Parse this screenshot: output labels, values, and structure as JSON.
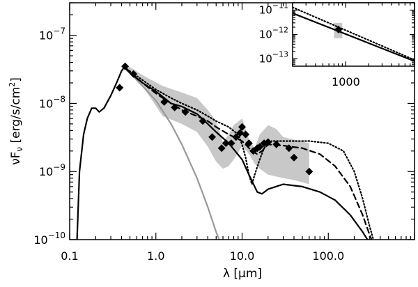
{
  "chart_data": {
    "type": "line",
    "xlabel": "λ [μm]",
    "ylabel": "νF",
    "ylabel_sub": "ν",
    "ylabel_units": " [erg/s/cm",
    "ylabel_exp": "2",
    "ylabel_close": "]",
    "x_scale": "log",
    "y_scale": "log",
    "xlim": [
      0.1,
      1000
    ],
    "ylim": [
      1e-10,
      3e-07
    ],
    "x_ticklabels": [
      {
        "v": 0.1,
        "t": "0.1"
      },
      {
        "v": 1,
        "t": "1.0"
      },
      {
        "v": 10,
        "t": "10.0"
      },
      {
        "v": 100,
        "t": "100.0"
      }
    ],
    "y_ticklabels": [
      {
        "v": 1e-10,
        "base": "10",
        "exp": "−10"
      },
      {
        "v": 1e-09,
        "base": "10",
        "exp": "−9"
      },
      {
        "v": 1e-08,
        "base": "10",
        "exp": "−8"
      },
      {
        "v": 1e-07,
        "base": "10",
        "exp": "−7"
      }
    ],
    "uncertainty_band": {
      "color": "#c8c8c8",
      "upper": [
        [
          0.44,
          3.8e-08
        ],
        [
          0.7,
          2.6e-08
        ],
        [
          1.2,
          1.8e-08
        ],
        [
          2.0,
          1.45e-08
        ],
        [
          3.0,
          1.2e-08
        ],
        [
          4.0,
          8e-09
        ],
        [
          5.0,
          5.5e-09
        ],
        [
          6.0,
          2.7e-09
        ],
        [
          7.0,
          3.5e-09
        ],
        [
          8.0,
          4.8e-09
        ],
        [
          10.0,
          6e-09
        ],
        [
          12.0,
          3e-09
        ],
        [
          14.0,
          2.2e-09
        ],
        [
          16.0,
          3.5e-09
        ],
        [
          20.0,
          4.8e-09
        ],
        [
          25.0,
          4.2e-09
        ],
        [
          30.0,
          3.2e-09
        ],
        [
          60.0,
          2.6e-09
        ]
      ],
      "lower": [
        [
          60.0,
          6.5e-10
        ],
        [
          40.0,
          7.5e-10
        ],
        [
          30.0,
          8e-10
        ],
        [
          20.0,
          9e-10
        ],
        [
          16.0,
          1.1e-09
        ],
        [
          14.0,
          1.3e-09
        ],
        [
          12.0,
          1.8e-09
        ],
        [
          10.0,
          2.4e-09
        ],
        [
          9.0,
          1.9e-09
        ],
        [
          8.0,
          1.5e-09
        ],
        [
          7.0,
          1.2e-09
        ],
        [
          6.0,
          1.1e-09
        ],
        [
          5.0,
          1.4e-09
        ],
        [
          4.0,
          2.3e-09
        ],
        [
          3.0,
          3.8e-09
        ],
        [
          2.0,
          5e-09
        ],
        [
          1.2,
          6.5e-09
        ],
        [
          0.7,
          1.8e-08
        ],
        [
          0.44,
          3.2e-08
        ]
      ]
    },
    "series": [
      {
        "style": "solid",
        "color": "#999999",
        "points": [
          [
            0.42,
            3.4e-08
          ],
          [
            0.5,
            2.8e-08
          ],
          [
            0.7,
            1.8e-08
          ],
          [
            1.0,
            1.1e-08
          ],
          [
            1.5,
            5e-09
          ],
          [
            2.0,
            2.5e-09
          ],
          [
            3.0,
            8e-10
          ],
          [
            4.0,
            3e-10
          ],
          [
            5.0,
            1.3e-10
          ],
          [
            5.8,
            8e-11
          ]
        ]
      },
      {
        "style": "solid",
        "color": "#000000",
        "points": [
          [
            0.12,
            6e-11
          ],
          [
            0.13,
            1e-09
          ],
          [
            0.145,
            3.5e-09
          ],
          [
            0.16,
            6e-09
          ],
          [
            0.18,
            8.5e-09
          ],
          [
            0.2,
            8.5e-09
          ],
          [
            0.22,
            7.5e-09
          ],
          [
            0.25,
            8.5e-09
          ],
          [
            0.3,
            1.3e-08
          ],
          [
            0.35,
            2e-08
          ],
          [
            0.4,
            3e-08
          ],
          [
            0.43,
            3.4e-08
          ],
          [
            0.5,
            2.8e-08
          ],
          [
            0.7,
            2e-08
          ],
          [
            1.0,
            1.5e-08
          ],
          [
            1.5,
            1e-08
          ],
          [
            2.0,
            9e-09
          ],
          [
            3.0,
            7e-09
          ],
          [
            4.0,
            5e-09
          ],
          [
            5.0,
            3.8e-09
          ],
          [
            7.0,
            2.6e-09
          ],
          [
            10.0,
            1.5e-09
          ],
          [
            12.0,
            9e-10
          ],
          [
            15.0,
            5e-10
          ],
          [
            17.0,
            4.7e-10
          ],
          [
            20.0,
            5.5e-10
          ],
          [
            30.0,
            6.5e-10
          ],
          [
            50.0,
            6e-10
          ],
          [
            80.0,
            5e-10
          ],
          [
            120.0,
            3.8e-10
          ],
          [
            180.0,
            2.3e-10
          ],
          [
            250.0,
            1.3e-10
          ],
          [
            300.0,
            9e-11
          ]
        ]
      },
      {
        "style": "dashed",
        "color": "#000000",
        "points": [
          [
            0.43,
            3.4e-08
          ],
          [
            0.7,
            2e-08
          ],
          [
            1.0,
            1.4e-08
          ],
          [
            1.5,
            1e-08
          ],
          [
            2.0,
            8e-09
          ],
          [
            3.0,
            6.5e-09
          ],
          [
            4.0,
            5.5e-09
          ],
          [
            5.0,
            4.5e-09
          ],
          [
            7.0,
            3.5e-09
          ],
          [
            10.0,
            2.8e-09
          ],
          [
            13.0,
            2e-09
          ],
          [
            15.0,
            1.8e-09
          ],
          [
            17.0,
            2e-09
          ],
          [
            20.0,
            2.5e-09
          ],
          [
            30.0,
            2.4e-09
          ],
          [
            50.0,
            2.2e-09
          ],
          [
            80.0,
            1.8e-09
          ],
          [
            120.0,
            1.2e-09
          ],
          [
            180.0,
            6e-10
          ],
          [
            250.0,
            2.3e-10
          ],
          [
            300.0,
            1.2e-10
          ],
          [
            340.0,
            8e-11
          ]
        ]
      },
      {
        "style": "dotted",
        "color": "#000000",
        "points": [
          [
            0.43,
            3.4e-08
          ],
          [
            0.7,
            2.2e-08
          ],
          [
            1.0,
            1.6e-08
          ],
          [
            1.5,
            1.2e-08
          ],
          [
            2.0,
            1e-08
          ],
          [
            3.0,
            8e-09
          ],
          [
            4.0,
            6.5e-09
          ],
          [
            5.0,
            5.5e-09
          ],
          [
            7.0,
            4.5e-09
          ],
          [
            9.0,
            3.5e-09
          ],
          [
            10.0,
            2.5e-09
          ],
          [
            11.0,
            1.6e-09
          ],
          [
            12.0,
            9e-10
          ],
          [
            13.0,
            6.5e-10
          ],
          [
            14.0,
            9e-10
          ],
          [
            16.0,
            1.5e-09
          ],
          [
            18.0,
            2.2e-09
          ],
          [
            22.0,
            2.8e-09
          ],
          [
            30.0,
            2.8e-09
          ],
          [
            60.0,
            2.8e-09
          ],
          [
            100.0,
            2.6e-09
          ],
          [
            150.0,
            2e-09
          ],
          [
            200.0,
            1e-09
          ],
          [
            250.0,
            4e-10
          ],
          [
            300.0,
            1.6e-10
          ],
          [
            350.0,
            8e-11
          ]
        ]
      }
    ],
    "data_points": [
      [
        0.38,
        1.7e-08
      ],
      [
        0.44,
        3.5e-08
      ],
      [
        0.55,
        2.7e-08
      ],
      [
        1.25,
        1.05e-08
      ],
      [
        1.65,
        8.7e-09
      ],
      [
        2.2,
        7.5e-09
      ],
      [
        3.5,
        5.5e-09
      ],
      [
        4.5,
        3.2e-09
      ],
      [
        5.8,
        2.2e-09
      ],
      [
        6.5,
        2.6e-09
      ],
      [
        7.5,
        2.6e-09
      ],
      [
        8.5,
        3.2e-09
      ],
      [
        9.5,
        3.7e-09
      ],
      [
        10.0,
        4.5e-09
      ],
      [
        11.0,
        3.5e-09
      ],
      [
        12.0,
        2.6e-09
      ],
      [
        13.5,
        2e-09
      ],
      [
        15.0,
        2.2e-09
      ],
      [
        16.0,
        2.3e-09
      ],
      [
        18.0,
        2.6e-09
      ],
      [
        20.0,
        2.7e-09
      ],
      [
        25.0,
        2.5e-09
      ],
      [
        35.0,
        2.2e-09
      ],
      [
        40.0,
        1.6e-09
      ],
      [
        60.0,
        1e-09
      ]
    ],
    "inset": {
      "xlim": [
        200,
        8000
      ],
      "ylim": [
        5e-14,
        2e-11
      ],
      "x_ticklabels": [
        {
          "v": 1000,
          "t": "1000"
        }
      ],
      "y_ticklabels": [
        {
          "v": 1e-11,
          "base": "10",
          "exp": "−11"
        },
        {
          "v": 1e-12,
          "base": "10",
          "exp": "−12"
        },
        {
          "v": 1e-13,
          "base": "10",
          "exp": "−13"
        }
      ],
      "box": {
        "x": [
          700,
          900
        ],
        "y": [
          7e-13,
          3e-12
        ],
        "color": "#c8c8c8"
      },
      "series": [
        {
          "style": "solid",
          "color": "#000000",
          "points": [
            [
              200,
              7.5e-12
            ],
            [
              8000,
              8e-14
            ]
          ]
        },
        {
          "style": "dotted",
          "color": "#000000",
          "points": [
            [
              200,
              1.3e-11
            ],
            [
              8000,
              9e-14
            ]
          ]
        }
      ],
      "data_points": [
        [
          800,
          1.6e-12
        ]
      ]
    }
  }
}
